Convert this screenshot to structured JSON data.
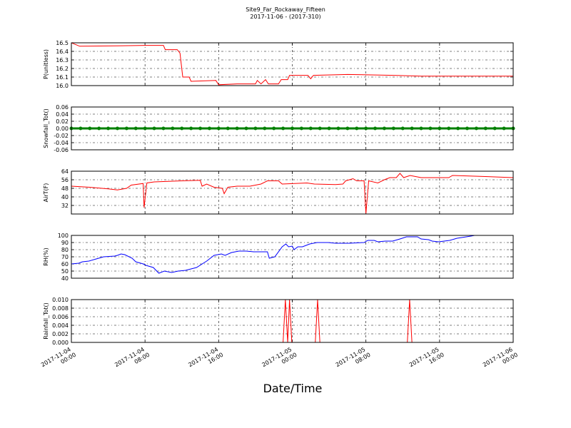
{
  "title": "Site9_Far_Rockaway_Fifteen",
  "subtitle": "2017-11-06 - (2017-310)",
  "xlabel": "Date/Time",
  "chart_data": [
    {
      "type": "line",
      "ylabel": "P(unitless)",
      "color": "#ff0000",
      "grid": true,
      "xlim": [
        0,
        48
      ],
      "ylim": [
        16.0,
        16.5
      ],
      "yticks": [
        {
          "value": 16.0,
          "label": "16.0"
        },
        16.1,
        16.2,
        16.3,
        16.4,
        16.5
      ],
      "x": [
        0,
        0.9,
        5,
        8,
        10,
        10.2,
        11.5,
        11.8,
        12.1,
        12.8,
        13,
        15.7,
        16,
        18,
        20,
        20.2,
        20.6,
        21.1,
        21.4,
        22.5,
        22.8,
        23.5,
        23.7,
        25.7,
        26,
        26.3,
        30,
        35,
        38,
        40,
        44,
        48
      ],
      "values": [
        16.5,
        16.46,
        16.465,
        16.47,
        16.47,
        16.42,
        16.42,
        16.38,
        16.1,
        16.1,
        16.05,
        16.06,
        16.01,
        16.02,
        16.02,
        16.06,
        16.02,
        16.07,
        16.02,
        16.02,
        16.07,
        16.07,
        16.12,
        16.12,
        16.08,
        16.12,
        16.13,
        16.12,
        16.11,
        16.11,
        16.11,
        16.11
      ]
    },
    {
      "type": "line",
      "marker": "o",
      "ylabel": "Snowfall_Tot()",
      "color": "#008000",
      "grid": true,
      "xlim": [
        0,
        48
      ],
      "ylim": [
        -0.06,
        0.06
      ],
      "yticks": [
        -0.06,
        -0.04,
        -0.02,
        {
          "value": 0,
          "label": "0.00"
        },
        0.02,
        0.04,
        0.06
      ],
      "x": [
        0,
        1,
        2,
        3,
        4,
        5,
        6,
        7,
        8,
        9,
        10,
        11,
        12,
        13,
        14,
        15,
        16,
        17,
        18,
        19,
        20,
        21,
        22,
        23,
        24,
        25,
        26,
        27,
        28,
        29,
        30,
        31,
        32,
        33,
        34,
        35,
        36,
        37,
        38,
        39,
        40,
        41,
        42,
        43,
        44,
        45,
        46,
        47,
        48
      ],
      "values": [
        0,
        0,
        0,
        0,
        0,
        0,
        0,
        0,
        0,
        0,
        0,
        0,
        0,
        0,
        0,
        0,
        0,
        0,
        0,
        0,
        0,
        0,
        0,
        0,
        0,
        0,
        0,
        0,
        0,
        0,
        0,
        0,
        0,
        0,
        0,
        0,
        0,
        0,
        0,
        0,
        0,
        0,
        0,
        0,
        0,
        0,
        0,
        0,
        0
      ]
    },
    {
      "type": "line",
      "ylabel": "AirT(F)",
      "color": "#ff0000",
      "grid": true,
      "xlim": [
        0,
        48
      ],
      "ylim": [
        24,
        64
      ],
      "yticks": [
        32,
        40,
        48,
        56,
        64
      ],
      "x": [
        0,
        2,
        4,
        5,
        6,
        6.5,
        7.8,
        7.9,
        8.2,
        9,
        12,
        14,
        14.2,
        14.7,
        15.5,
        16.4,
        16.6,
        17,
        18,
        19.4,
        20.6,
        21.3,
        22.5,
        22.9,
        25.6,
        26.4,
        28.7,
        29.5,
        29.8,
        30.6,
        31,
        31.8,
        32,
        32.3,
        33.3,
        34,
        34.6,
        35.3,
        35.7,
        36.1,
        36.8,
        38,
        41,
        41.4,
        45,
        48
      ],
      "values": [
        50,
        49,
        47.5,
        46.5,
        48,
        51,
        52.5,
        30,
        53,
        54,
        55,
        55.5,
        50,
        52,
        49,
        48,
        43,
        49,
        50,
        50,
        52,
        55,
        55,
        52,
        53,
        52,
        51.5,
        52,
        55,
        57,
        55,
        55,
        24.5,
        55,
        53,
        56,
        58,
        58,
        62,
        58,
        60,
        58,
        58,
        60,
        59,
        58
      ]
    },
    {
      "type": "line",
      "ylabel": "RH(%)",
      "color": "#0000ff",
      "grid": true,
      "xlim": [
        0,
        48
      ],
      "ylim": [
        40,
        100
      ],
      "yticks": [
        40,
        50,
        60,
        70,
        80,
        90,
        100
      ],
      "x": [
        0,
        0.8,
        1.2,
        1.9,
        2.7,
        3.5,
        4.7,
        5,
        5.4,
        5.8,
        6.6,
        7,
        7.8,
        8.1,
        8.9,
        9.5,
        10.1,
        10.9,
        11.6,
        12.4,
        13.6,
        14.7,
        15.5,
        16.3,
        16.7,
        17.4,
        18.2,
        19,
        19.8,
        21.3,
        21.5,
        22.1,
        22.9,
        23.3,
        23.6,
        24,
        24.2,
        24.6,
        25.1,
        25.9,
        26.7,
        27.9,
        28.7,
        30.2,
        31.8,
        32.2,
        32.9,
        33.3,
        34.1,
        34.9,
        35.7,
        36.4,
        37.6,
        38,
        38.8,
        39.2,
        39.9,
        41.1,
        41.9,
        43.4,
        43.8
      ],
      "values": [
        60,
        61,
        63,
        64,
        67,
        70,
        71,
        72,
        74,
        73,
        68,
        63,
        60,
        58,
        55,
        47,
        50,
        48,
        50,
        51,
        55,
        64,
        72,
        74,
        72,
        76,
        78,
        78,
        77,
        77,
        68,
        70,
        84,
        88,
        84,
        85,
        80,
        84,
        84,
        88,
        90,
        90,
        89,
        89,
        90,
        93,
        93,
        91,
        92,
        92,
        95,
        98,
        98,
        95,
        94,
        92,
        91,
        93,
        96,
        99,
        100
      ]
    },
    {
      "type": "line",
      "ylabel": "Rainfall_Tot()",
      "color": "#ff0000",
      "grid": true,
      "xlim": [
        0,
        48
      ],
      "ylim": [
        0,
        0.01
      ],
      "yticks": [
        {
          "value": 0,
          "label": "0.000"
        },
        0.002,
        0.004,
        0.006,
        0.008,
        {
          "value": 0.01,
          "label": "0.010"
        }
      ],
      "xticks": [
        {
          "value": 0,
          "label": "2017-11-04 00:00"
        },
        {
          "value": 8,
          "label": "2017-11-04 08:00"
        },
        {
          "value": 16,
          "label": "2017-11-04 16:00"
        },
        {
          "value": 24,
          "label": "2017-11-05 00:00"
        },
        {
          "value": 32,
          "label": "2017-11-05 08:00"
        },
        {
          "value": 40,
          "label": "2017-11-05 16:00"
        },
        {
          "value": 48,
          "label": "2017-11-06 00:00"
        }
      ],
      "x": [
        0,
        23,
        23.25,
        23.5,
        23.7,
        23.95,
        26.5,
        26.75,
        27,
        36.5,
        36.75,
        37,
        48
      ],
      "values": [
        0,
        0,
        0.01,
        0,
        0.01,
        0,
        0,
        0.01,
        0,
        0,
        0.01,
        0,
        0
      ]
    }
  ]
}
